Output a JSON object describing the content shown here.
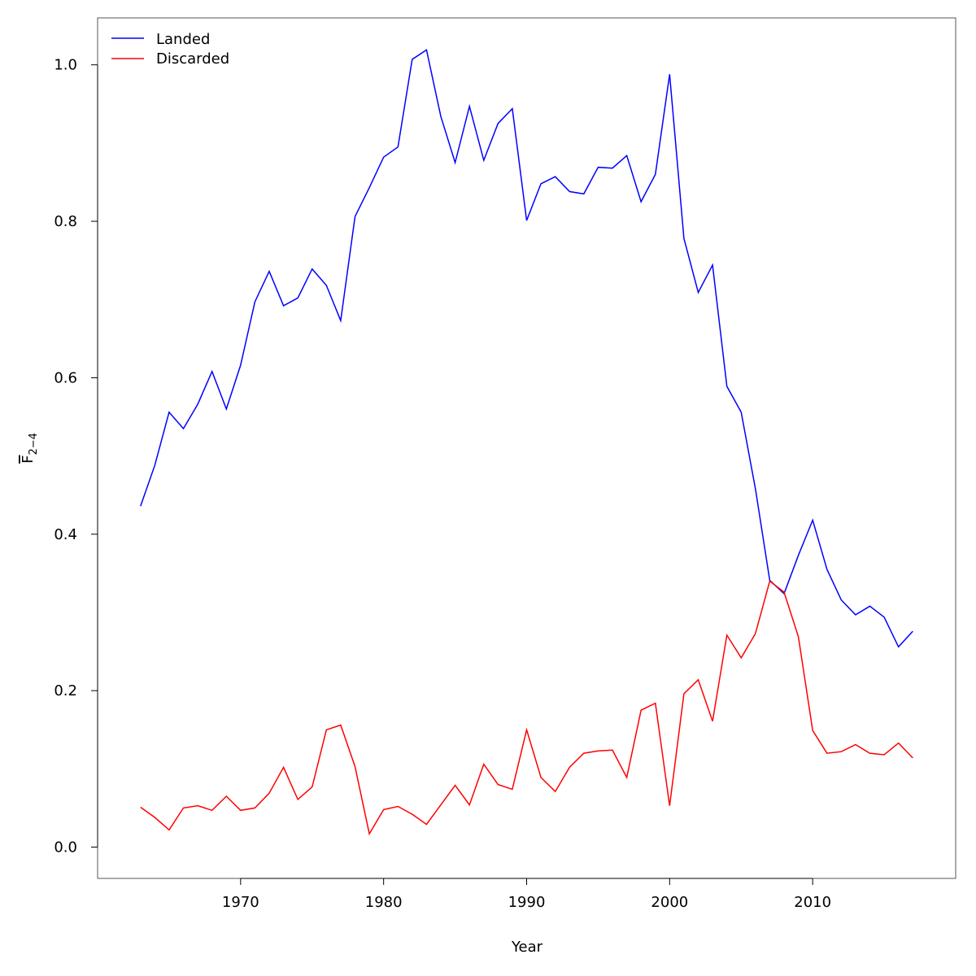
{
  "chart_data": {
    "type": "line",
    "title": "",
    "xlabel": "Year",
    "ylabel": {
      "main": "F",
      "subscript": "2−4"
    },
    "xlim": [
      1960,
      2020
    ],
    "ylim": [
      -0.04,
      1.06
    ],
    "xticks": [
      1970,
      1980,
      1990,
      2000,
      2010
    ],
    "xtick_labels": [
      "1970",
      "1980",
      "1990",
      "2000",
      "2010"
    ],
    "yticks": [
      0.0,
      0.2,
      0.4,
      0.6,
      0.8,
      1.0
    ],
    "ytick_labels": [
      "0.0",
      "0.2",
      "0.4",
      "0.6",
      "0.8",
      "1.0"
    ],
    "grid": false,
    "legend_position": "top-left",
    "x": [
      1963,
      1964,
      1965,
      1966,
      1967,
      1968,
      1969,
      1970,
      1971,
      1972,
      1973,
      1974,
      1975,
      1976,
      1977,
      1978,
      1979,
      1980,
      1981,
      1982,
      1983,
      1984,
      1985,
      1986,
      1987,
      1988,
      1989,
      1990,
      1991,
      1992,
      1993,
      1994,
      1995,
      1996,
      1997,
      1998,
      1999,
      2000,
      2001,
      2002,
      2003,
      2004,
      2005,
      2006,
      2007,
      2008,
      2009,
      2010,
      2011,
      2012,
      2013,
      2014,
      2015,
      2016,
      2017
    ],
    "series": [
      {
        "name": "Landed",
        "color": "#0000ff",
        "values": [
          0.436,
          0.488,
          0.556,
          0.535,
          0.566,
          0.608,
          0.56,
          0.616,
          0.697,
          0.736,
          0.692,
          0.702,
          0.739,
          0.718,
          0.673,
          0.806,
          0.843,
          0.882,
          0.895,
          1.007,
          1.019,
          0.934,
          0.875,
          0.947,
          0.878,
          0.925,
          0.944,
          0.801,
          0.848,
          0.857,
          0.838,
          0.835,
          0.869,
          0.868,
          0.884,
          0.825,
          0.86,
          0.988,
          0.778,
          0.709,
          0.744,
          0.589,
          0.556,
          0.458,
          0.341,
          0.324,
          0.373,
          0.418,
          0.355,
          0.316,
          0.297,
          0.308,
          0.294,
          0.256,
          0.276
        ]
      },
      {
        "name": "Discarded",
        "color": "#ff0000",
        "values": [
          0.051,
          0.038,
          0.022,
          0.05,
          0.053,
          0.047,
          0.065,
          0.047,
          0.05,
          0.069,
          0.102,
          0.061,
          0.077,
          0.15,
          0.156,
          0.103,
          0.017,
          0.048,
          0.052,
          0.042,
          0.029,
          0.054,
          0.079,
          0.054,
          0.106,
          0.08,
          0.074,
          0.15,
          0.089,
          0.071,
          0.102,
          0.12,
          0.123,
          0.124,
          0.089,
          0.175,
          0.184,
          0.053,
          0.196,
          0.214,
          0.161,
          0.271,
          0.242,
          0.273,
          0.34,
          0.326,
          0.269,
          0.149,
          0.12,
          0.122,
          0.131,
          0.12,
          0.118,
          0.133,
          0.114
        ]
      }
    ]
  }
}
